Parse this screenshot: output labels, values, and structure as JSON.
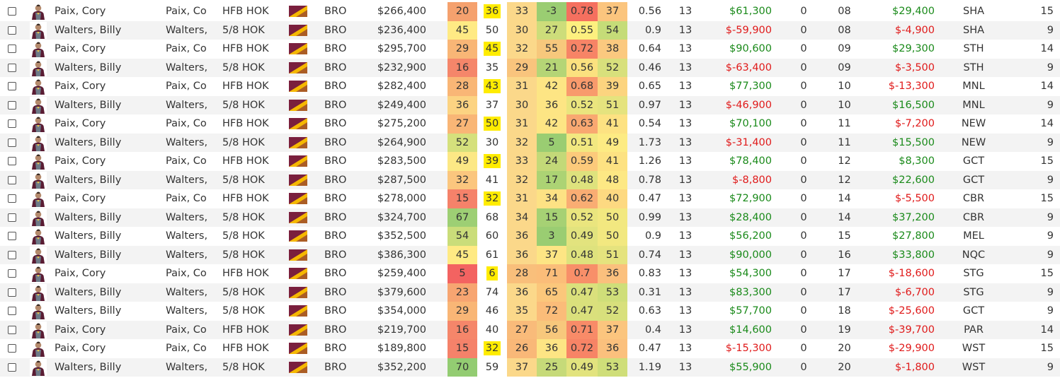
{
  "colors": {
    "positive": "#1a8a1a",
    "negative": "#e01a1a",
    "highlight": "#ffec00",
    "flag_top": "#7a1f3d",
    "flag_bottom": "#f5b800"
  },
  "icons": {
    "avatar": "player-avatar-icon",
    "flag": "team-flag-icon"
  },
  "rows": [
    {
      "name": "Paix, Cory",
      "short": "Paix, Co",
      "pos": "HFB HOK",
      "team": "BRO",
      "price": "$266,400",
      "h": [
        "20",
        "36",
        "33",
        "-3",
        "0.78",
        "37"
      ],
      "hbg": [
        "#f5a16e",
        "#ffffff",
        "#fbd88a",
        "#9acd72",
        "#f5705f",
        "#fbc57e"
      ],
      "hl2": true,
      "ppm": "0.56",
      "gp": "13",
      "cv": "$61,300",
      "z": "0",
      "rd": "08",
      "cv2": "$29,400",
      "opp": "SHA",
      "ln": "15"
    },
    {
      "name": "Walters, Billy",
      "short": "Walters,",
      "pos": "5/8 HOK",
      "team": "BRO",
      "price": "$236,400",
      "h": [
        "45",
        "50",
        "30",
        "27",
        "0.55",
        "54"
      ],
      "hbg": [
        "#ffea84",
        "#ffffff",
        "#fbd88a",
        "#cddd7a",
        "#fdf07f",
        "#c5dc78"
      ],
      "hl2": false,
      "ppm": "0.9",
      "gp": "13",
      "cv": "$-59,900",
      "z": "0",
      "rd": "08",
      "cv2": "$-4,900",
      "opp": "SHA",
      "ln": "9"
    },
    {
      "name": "Paix, Cory",
      "short": "Paix, Co",
      "pos": "HFB HOK",
      "team": "BRO",
      "price": "$295,700",
      "h": [
        "29",
        "45",
        "32",
        "55",
        "0.72",
        "38"
      ],
      "hbg": [
        "#f9b676",
        "#ffffff",
        "#fbd88a",
        "#f7c87c",
        "#f78466",
        "#fbc97f"
      ],
      "hl2": true,
      "ppm": "0.64",
      "gp": "13",
      "cv": "$90,600",
      "z": "0",
      "rd": "09",
      "cv2": "$29,300",
      "opp": "STH",
      "ln": "14"
    },
    {
      "name": "Walters, Billy",
      "short": "Walters,",
      "pos": "5/8 HOK",
      "team": "BRO",
      "price": "$232,900",
      "h": [
        "16",
        "35",
        "29",
        "21",
        "0.56",
        "52"
      ],
      "hbg": [
        "#f5866a",
        "#ffffff",
        "#f9c47d",
        "#b5d576",
        "#fbe17f",
        "#d8e07c"
      ],
      "hl2": false,
      "ppm": "0.46",
      "gp": "13",
      "cv": "$-63,400",
      "z": "0",
      "rd": "09",
      "cv2": "$-3,500",
      "opp": "STH",
      "ln": "9"
    },
    {
      "name": "Paix, Cory",
      "short": "Paix, Co",
      "pos": "HFB HOK",
      "team": "BRO",
      "price": "$282,400",
      "h": [
        "28",
        "43",
        "31",
        "42",
        "0.68",
        "39"
      ],
      "hbg": [
        "#f9b676",
        "#ffffff",
        "#fbd88a",
        "#fde584",
        "#f89a6c",
        "#fcd47f"
      ],
      "hl2": true,
      "ppm": "0.65",
      "gp": "13",
      "cv": "$77,300",
      "z": "0",
      "rd": "10",
      "cv2": "$-13,300",
      "opp": "MNL",
      "ln": "14"
    },
    {
      "name": "Walters, Billy",
      "short": "Walters,",
      "pos": "5/8 HOK",
      "team": "BRO",
      "price": "$249,400",
      "h": [
        "36",
        "37",
        "30",
        "36",
        "0.52",
        "51"
      ],
      "hbg": [
        "#fcd382",
        "#ffffff",
        "#fbd88a",
        "#fde584",
        "#eae57e",
        "#e5e37e"
      ],
      "hl2": false,
      "ppm": "0.97",
      "gp": "13",
      "cv": "$-46,900",
      "z": "0",
      "rd": "10",
      "cv2": "$16,500",
      "opp": "MNL",
      "ln": "9"
    },
    {
      "name": "Paix, Cory",
      "short": "Paix, Co",
      "pos": "HFB HOK",
      "team": "BRO",
      "price": "$275,200",
      "h": [
        "27",
        "50",
        "31",
        "42",
        "0.63",
        "41"
      ],
      "hbg": [
        "#f9b676",
        "#ffffff",
        "#fbd88a",
        "#fde584",
        "#f9a871",
        "#fde282"
      ],
      "hl2": true,
      "ppm": "0.54",
      "gp": "13",
      "cv": "$70,100",
      "z": "0",
      "rd": "11",
      "cv2": "$-7,200",
      "opp": "NEW",
      "ln": "14"
    },
    {
      "name": "Walters, Billy",
      "short": "Walters,",
      "pos": "5/8 HOK",
      "team": "BRO",
      "price": "$264,900",
      "h": [
        "52",
        "30",
        "32",
        "5",
        "0.51",
        "49"
      ],
      "hbg": [
        "#d5e07c",
        "#ffffff",
        "#fbd88a",
        "#9acd72",
        "#f2e880",
        "#fdeb83"
      ],
      "hl2": false,
      "ppm": "1.73",
      "gp": "13",
      "cv": "$-31,400",
      "z": "0",
      "rd": "11",
      "cv2": "$15,500",
      "opp": "NEW",
      "ln": "9"
    },
    {
      "name": "Paix, Cory",
      "short": "Paix, Co",
      "pos": "HFB HOK",
      "team": "BRO",
      "price": "$283,500",
      "h": [
        "49",
        "39",
        "33",
        "24",
        "0.59",
        "41"
      ],
      "hbg": [
        "#fce885",
        "#ffffff",
        "#fbd88a",
        "#c3d978",
        "#fcca7b",
        "#fde282"
      ],
      "hl2": true,
      "ppm": "1.26",
      "gp": "13",
      "cv": "$78,400",
      "z": "0",
      "rd": "12",
      "cv2": "$8,300",
      "opp": "GCT",
      "ln": "15"
    },
    {
      "name": "Walters, Billy",
      "short": "Walters,",
      "pos": "5/8 HOK",
      "team": "BRO",
      "price": "$287,500",
      "h": [
        "32",
        "41",
        "32",
        "17",
        "0.48",
        "48"
      ],
      "hbg": [
        "#fbc67e",
        "#ffffff",
        "#fbd88a",
        "#acd374",
        "#dee27d",
        "#fde884"
      ],
      "hl2": false,
      "ppm": "0.78",
      "gp": "13",
      "cv": "$-8,800",
      "z": "0",
      "rd": "12",
      "cv2": "$22,600",
      "opp": "GCT",
      "ln": "9"
    },
    {
      "name": "Paix, Cory",
      "short": "Paix, Co",
      "pos": "HFB HOK",
      "team": "BRO",
      "price": "$278,000",
      "h": [
        "15",
        "32",
        "31",
        "34",
        "0.62",
        "40"
      ],
      "hbg": [
        "#f5826a",
        "#ffffff",
        "#fbd88a",
        "#fde284",
        "#f9ad73",
        "#fdd981"
      ],
      "hl2": true,
      "ppm": "0.47",
      "gp": "13",
      "cv": "$72,900",
      "z": "0",
      "rd": "14",
      "cv2": "$-5,500",
      "opp": "CBR",
      "ln": "15"
    },
    {
      "name": "Walters, Billy",
      "short": "Walters,",
      "pos": "5/8 HOK",
      "team": "BRO",
      "price": "$324,700",
      "h": [
        "67",
        "68",
        "34",
        "15",
        "0.52",
        "50"
      ],
      "hbg": [
        "#9dcf74",
        "#ffffff",
        "#fbd88a",
        "#a6d174",
        "#eae57e",
        "#f2e880"
      ],
      "hl2": false,
      "ppm": "0.99",
      "gp": "13",
      "cv": "$28,400",
      "z": "0",
      "rd": "14",
      "cv2": "$37,200",
      "opp": "CBR",
      "ln": "9"
    },
    {
      "name": "Walters, Billy",
      "short": "Walters,",
      "pos": "5/8 HOK",
      "team": "BRO",
      "price": "$352,500",
      "h": [
        "54",
        "60",
        "36",
        "3",
        "0.49",
        "50"
      ],
      "hbg": [
        "#cadd7a",
        "#ffffff",
        "#fbd88a",
        "#9acd72",
        "#e2e37e",
        "#f2e880"
      ],
      "hl2": false,
      "ppm": "0.9",
      "gp": "13",
      "cv": "$56,200",
      "z": "0",
      "rd": "15",
      "cv2": "$27,800",
      "opp": "MEL",
      "ln": "9"
    },
    {
      "name": "Walters, Billy",
      "short": "Walters,",
      "pos": "5/8 HOK",
      "team": "BRO",
      "price": "$386,300",
      "h": [
        "45",
        "61",
        "36",
        "37",
        "0.48",
        "51"
      ],
      "hbg": [
        "#ffea84",
        "#ffffff",
        "#fbd88a",
        "#fde584",
        "#dee27d",
        "#e5e37e"
      ],
      "hl2": false,
      "ppm": "0.74",
      "gp": "13",
      "cv": "$90,000",
      "z": "0",
      "rd": "16",
      "cv2": "$33,800",
      "opp": "NQC",
      "ln": "9"
    },
    {
      "name": "Paix, Cory",
      "short": "Paix, Co",
      "pos": "HFB HOK",
      "team": "BRO",
      "price": "$259,400",
      "h": [
        "5",
        "6",
        "28",
        "71",
        "0.7",
        "36"
      ],
      "hbg": [
        "#f36361",
        "#ffffff",
        "#f9bf7b",
        "#fbbd79",
        "#f88f69",
        "#fbc07d"
      ],
      "hl2": true,
      "ppm": "0.83",
      "gp": "13",
      "cv": "$54,300",
      "z": "0",
      "rd": "17",
      "cv2": "$-18,600",
      "opp": "STG",
      "ln": "15"
    },
    {
      "name": "Walters, Billy",
      "short": "Walters,",
      "pos": "5/8 HOK",
      "team": "BRO",
      "price": "$379,600",
      "h": [
        "23",
        "74",
        "36",
        "65",
        "0.47",
        "53"
      ],
      "hbg": [
        "#f7a571",
        "#ffffff",
        "#fbd88a",
        "#fbc77b",
        "#dae07c",
        "#cfde79"
      ],
      "hl2": false,
      "ppm": "0.31",
      "gp": "13",
      "cv": "$83,300",
      "z": "0",
      "rd": "17",
      "cv2": "$-6,700",
      "opp": "STG",
      "ln": "9"
    },
    {
      "name": "Walters, Billy",
      "short": "Walters,",
      "pos": "5/8 HOK",
      "team": "BRO",
      "price": "$354,000",
      "h": [
        "29",
        "46",
        "35",
        "72",
        "0.47",
        "52"
      ],
      "hbg": [
        "#f9b676",
        "#ffffff",
        "#fbd88a",
        "#fbbc79",
        "#dae07c",
        "#d8e07c"
      ],
      "hl2": false,
      "ppm": "0.63",
      "gp": "13",
      "cv": "$57,700",
      "z": "0",
      "rd": "18",
      "cv2": "$-25,600",
      "opp": "GCT",
      "ln": "9"
    },
    {
      "name": "Paix, Cory",
      "short": "Paix, Co",
      "pos": "HFB HOK",
      "team": "BRO",
      "price": "$219,700",
      "h": [
        "16",
        "40",
        "27",
        "56",
        "0.71",
        "37"
      ],
      "hbg": [
        "#f5866a",
        "#ffffff",
        "#f9bb7a",
        "#f7c87c",
        "#f88b68",
        "#fbc57e"
      ],
      "hl2": false,
      "ppm": "0.4",
      "gp": "13",
      "cv": "$14,600",
      "z": "0",
      "rd": "19",
      "cv2": "$-39,700",
      "opp": "PAR",
      "ln": "14"
    },
    {
      "name": "Paix, Cory",
      "short": "Paix, Co",
      "pos": "HFB HOK",
      "team": "BRO",
      "price": "$189,800",
      "h": [
        "15",
        "32",
        "26",
        "36",
        "0.72",
        "36"
      ],
      "hbg": [
        "#f5826a",
        "#ffffff",
        "#f9b878",
        "#fde584",
        "#f78466",
        "#fbc07d"
      ],
      "hl2": true,
      "ppm": "0.47",
      "gp": "13",
      "cv": "$-15,300",
      "z": "0",
      "rd": "20",
      "cv2": "$-29,900",
      "opp": "WST",
      "ln": "15"
    },
    {
      "name": "Walters, Billy",
      "short": "Walters,",
      "pos": "5/8 HOK",
      "team": "BRO",
      "price": "$352,200",
      "h": [
        "70",
        "59",
        "37",
        "25",
        "0.49",
        "53"
      ],
      "hbg": [
        "#93cc72",
        "#ffffff",
        "#fbd88a",
        "#c6da79",
        "#e2e37e",
        "#cfde79"
      ],
      "hl2": false,
      "ppm": "1.19",
      "gp": "13",
      "cv": "$55,900",
      "z": "0",
      "rd": "20",
      "cv2": "$-1,800",
      "opp": "WST",
      "ln": "9"
    }
  ]
}
